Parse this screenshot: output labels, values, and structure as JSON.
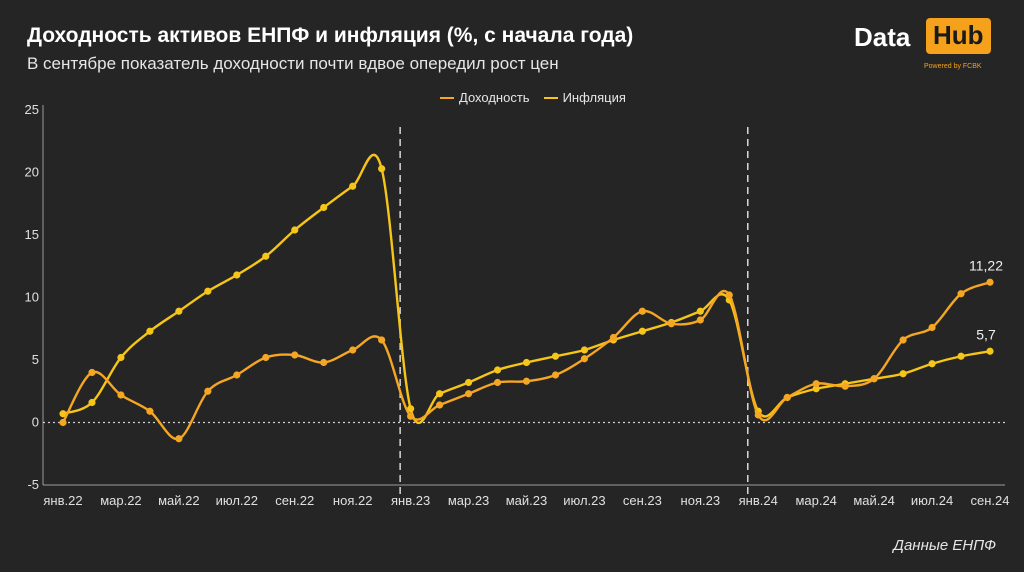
{
  "header": {
    "title": "Доходность активов ЕНПФ и инфляция (%, с начала года)",
    "subtitle": "В сентябре показатель доходности почти вдвое опередил рост цен"
  },
  "logo": {
    "data": "Data",
    "hub": "Hub",
    "powered": "Powered by FCBK"
  },
  "source": "Данные ЕНПФ",
  "colors": {
    "background": "#252525",
    "income": "#f5a623",
    "inflation": "#f5c518"
  },
  "chart_data": {
    "type": "line",
    "x": [
      "янв.22",
      "фев.22",
      "мар.22",
      "апр.22",
      "май.22",
      "июн.22",
      "июл.22",
      "авг.22",
      "сен.22",
      "окт.22",
      "ноя.22",
      "дек.22",
      "янв.23",
      "фев.23",
      "мар.23",
      "апр.23",
      "май.23",
      "июн.23",
      "июл.23",
      "авг.23",
      "сен.23",
      "окт.23",
      "ноя.23",
      "дек.23",
      "янв.24",
      "фев.24",
      "мар.24",
      "апр.24",
      "май.24",
      "июн.24",
      "июл.24",
      "авг.24",
      "сен.24"
    ],
    "tick_labels": [
      "янв.22",
      "мар.22",
      "май.22",
      "июл.22",
      "сен.22",
      "ноя.22",
      "янв.23",
      "мар.23",
      "май.23",
      "июл.23",
      "сен.23",
      "ноя.23",
      "янв.24",
      "мар.24",
      "май.24",
      "июл.24",
      "сен.24"
    ],
    "ylim": [
      -5,
      25
    ],
    "yticks": [
      -5,
      0,
      5,
      10,
      15,
      20,
      25
    ],
    "year_separators": [
      "янв.23",
      "янв.24"
    ],
    "series": [
      {
        "name": "Доходность",
        "color": "#f5a623",
        "values": [
          0.0,
          4.0,
          2.2,
          0.9,
          -1.3,
          2.5,
          3.8,
          5.2,
          5.4,
          4.8,
          5.8,
          6.6,
          0.5,
          1.4,
          2.3,
          3.2,
          3.3,
          3.8,
          5.1,
          6.8,
          8.9,
          7.9,
          8.2,
          10.2,
          0.6,
          2.0,
          3.1,
          2.9,
          3.5,
          6.6,
          7.6,
          10.3,
          11.22
        ]
      },
      {
        "name": "Инфляция",
        "color": "#f5c518",
        "values": [
          0.7,
          1.6,
          5.2,
          7.3,
          8.9,
          10.5,
          11.8,
          13.3,
          15.4,
          17.2,
          18.9,
          20.3,
          1.1,
          2.3,
          3.2,
          4.2,
          4.8,
          5.3,
          5.8,
          6.6,
          7.3,
          8.0,
          8.9,
          9.8,
          0.9,
          2.0,
          2.7,
          3.1,
          3.5,
          3.9,
          4.7,
          5.3,
          5.7
        ]
      }
    ],
    "annotations": [
      {
        "series": 0,
        "index": 32,
        "label": "11,22"
      },
      {
        "series": 1,
        "index": 32,
        "label": "5,7"
      }
    ],
    "zero_line": "dotted",
    "grid": false,
    "legend_position": "top-center"
  }
}
